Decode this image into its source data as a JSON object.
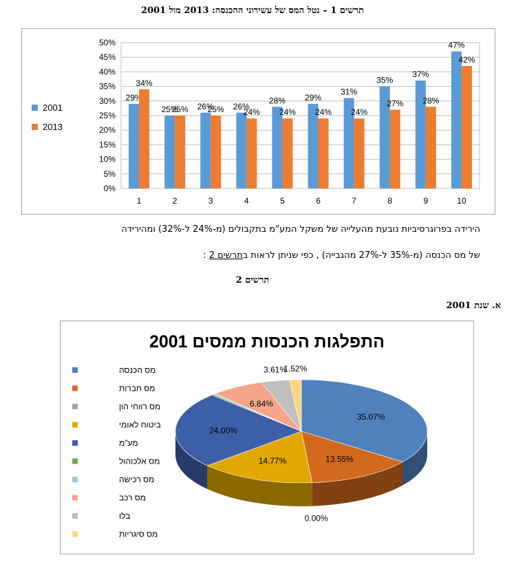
{
  "figure1_title": "תרשים 1 – נטל המס של עשירוני ההכנסה: 2013 מול 2001",
  "chart_data": [
    {
      "type": "bar",
      "title": "",
      "categories": [
        "1",
        "2",
        "3",
        "4",
        "5",
        "6",
        "7",
        "8",
        "9",
        "10"
      ],
      "series": [
        {
          "name": "2001",
          "values": [
            29,
            25,
            26,
            26,
            28,
            29,
            31,
            35,
            37,
            47
          ],
          "color": "#5b9bd5"
        },
        {
          "name": "2013",
          "values": [
            34,
            25,
            25,
            24,
            24,
            24,
            24,
            27,
            28,
            42
          ],
          "color": "#ed7d31"
        }
      ],
      "yticks": [
        "0%",
        "5%",
        "10%",
        "15%",
        "20%",
        "25%",
        "30%",
        "35%",
        "40%",
        "45%",
        "50%"
      ],
      "ylim": [
        0,
        50
      ],
      "value_format": "percent",
      "legend": "left",
      "grid": true
    },
    {
      "type": "pie",
      "title": "התפלגות הכנסות ממסים 2001",
      "style": "3d",
      "legend": "left",
      "slices": [
        {
          "name": "מס הכנסה",
          "value": 35.07,
          "label": "35.07%",
          "color": "#4f81bd"
        },
        {
          "name": "מס חברות",
          "value": 13.55,
          "label": "13.55%",
          "color": "#d2691e"
        },
        {
          "name": "מס רווחי הון",
          "value": 0.0,
          "label": "0.00%",
          "color": "#a5a5a5"
        },
        {
          "name": "ביטוח לאומי",
          "value": 14.77,
          "label": "14.77%",
          "color": "#e0a800"
        },
        {
          "name": "מע\"מ",
          "value": 24.0,
          "label": "24.00%",
          "color": "#3d5fa8"
        },
        {
          "name": "מס אלכוהול",
          "value": 0.3,
          "label": "",
          "color": "#70ad47"
        },
        {
          "name": "מס רכישה",
          "value": 0.3,
          "label": "",
          "color": "#9dc3e6"
        },
        {
          "name": "מס רכב",
          "value": 6.84,
          "label": "6.84%",
          "color": "#f4a58a"
        },
        {
          "name": "בלו",
          "value": 3.61,
          "label": "3.61%",
          "color": "#bfbfbf"
        },
        {
          "name": "מס סיגריות",
          "value": 1.52,
          "label": "1.52%",
          "color": "#ffd580"
        }
      ]
    }
  ],
  "paragraph": {
    "line1": "הירידה בפרוגרסיביות נובעת מהעלייה של משקל המע\"מ בתקבולים (מ-24% ל-32%) ומהירידה",
    "line2_start": "של מס הכנסה (מ-35% ל-27% מהגבייה) , כפי שניתן לראות ב",
    "line2_link": "תרשים 2",
    "line2_end": " :"
  },
  "figure2_title": "תרשים 2",
  "subheading": "א. שנת 2001"
}
